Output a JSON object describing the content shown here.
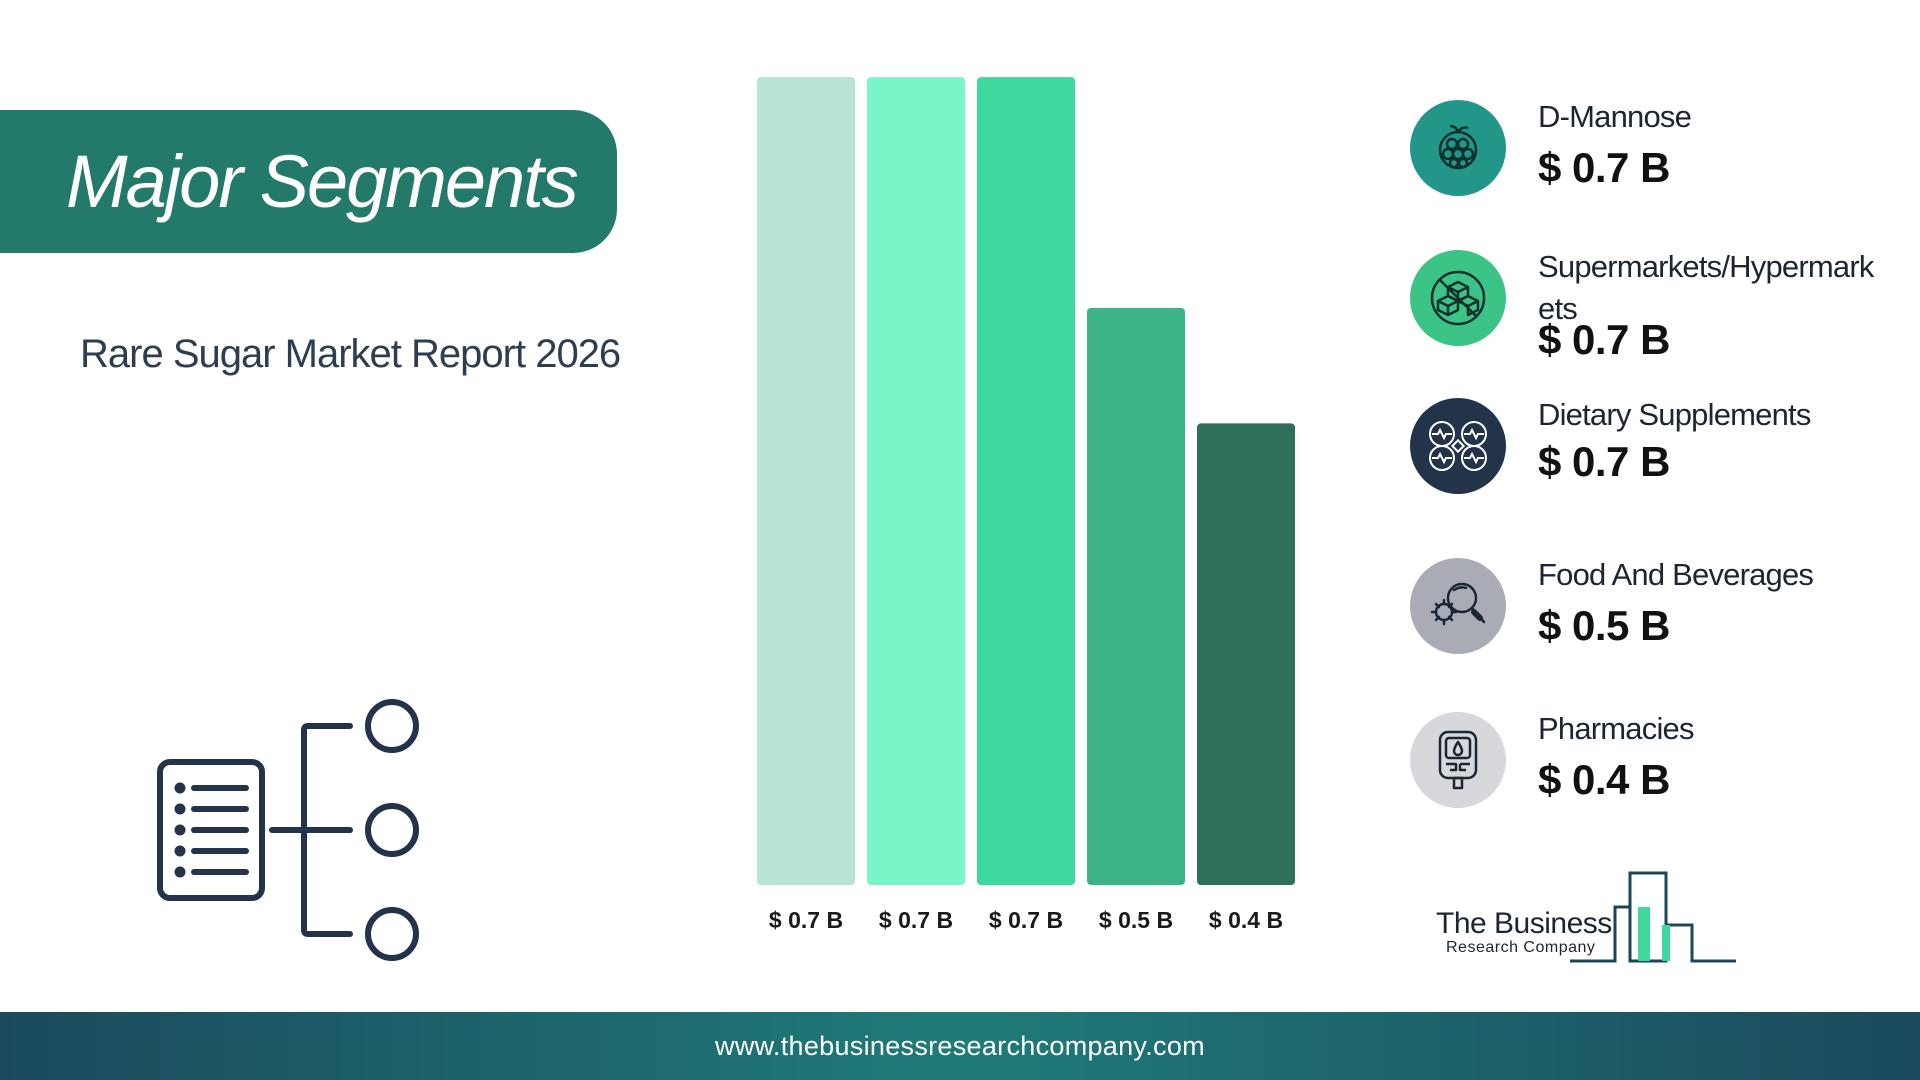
{
  "header": {
    "title": "Major Segments",
    "subtitle": "Rare Sugar Market Report 2026"
  },
  "chart_data": {
    "type": "bar",
    "title": "",
    "xlabel": "",
    "ylabel": "",
    "ylim": [
      0,
      0.72
    ],
    "categories": [
      "D-Mannose",
      "Supermarkets/Hypermarkets",
      "Dietary Supplements",
      "Food And Beverages",
      "Pharmacies"
    ],
    "values": [
      0.7,
      0.7,
      0.7,
      0.5,
      0.4
    ],
    "bar_labels": [
      "$ 0.7 B",
      "$ 0.7 B",
      "$ 0.7 B",
      "$ 0.5 B",
      "$ 0.4 B"
    ],
    "colors": [
      "#b8e4d3",
      "#7af5c7",
      "#3fd89e",
      "#3db488",
      "#2e7059"
    ],
    "grid": false,
    "legend": "right"
  },
  "legend": [
    {
      "name": "D-Mannose",
      "value": "$ 0.7 B",
      "icon": "berry-icon",
      "circle_color": "#23968a"
    },
    {
      "name": "Supermarkets/Hypermark ets",
      "value": "$ 0.7 B",
      "icon": "sugar-cubes-icon",
      "circle_color": "#3cc487"
    },
    {
      "name": "Dietary Supplements",
      "value": "$ 0.7 B",
      "icon": "molecule-icon",
      "circle_color": "#22334a"
    },
    {
      "name": "Food And Beverages",
      "value": "$ 0.5 B",
      "icon": "virus-magnifier-icon",
      "circle_color": "#a9acb5"
    },
    {
      "name": "Pharmacies",
      "value": "$ 0.4 B",
      "icon": "glucometer-icon",
      "circle_color": "#d7d8dc"
    }
  ],
  "logo": {
    "line1": "The Business",
    "line2": "Research Company"
  },
  "footer": {
    "url": "www.thebusinessresearchcompany.com"
  }
}
